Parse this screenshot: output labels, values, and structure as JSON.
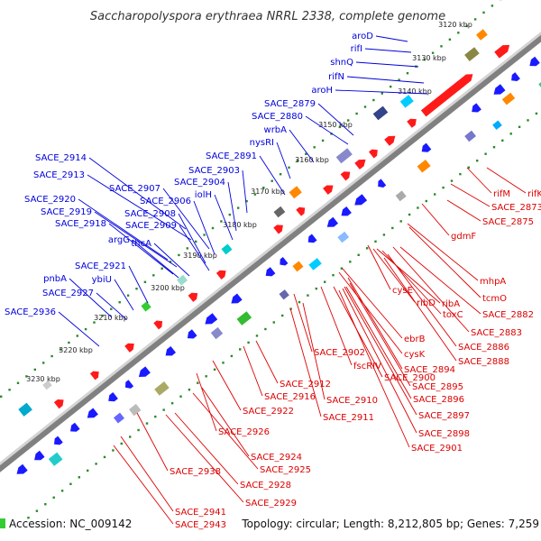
{
  "title": "Saccharopolyspora erythraea NRRL 2338, complete genome",
  "footer": {
    "accession": "Accession: NC_009142",
    "summary": "Topology: circular; Length: 8,212,805 bp; Genes: 7,259"
  },
  "colors": {
    "forward_label": "#0000dd",
    "reverse_label": "#dd0000",
    "forward_gene": "#1a1aff",
    "reverse_gene": "#ff1a1a",
    "backbone": "#808080",
    "dots": "#2a8a2a"
  },
  "ticks": [
    "3120 kbp",
    "3130 kbp",
    "3140 kbp",
    "3150 kbp",
    "3160 kbp",
    "3170 kbp",
    "3180 kbp",
    "3190 kbp",
    "3200 kbp",
    "3210 kbp",
    "3220 kbp",
    "3230 kbp"
  ],
  "forward_genes": [
    "aroD",
    "rifI",
    "shnQ",
    "rifN",
    "aroH",
    "SACE_2879",
    "SACE_2880",
    "wrbA",
    "nysRI",
    "SACE_2891",
    "SACE_2903",
    "SACE_2904",
    "iolH",
    "SACE_2914",
    "SACE_2913",
    "SACE_2907",
    "SACE_2906",
    "SACE_2920",
    "SACE_2919",
    "SACE_2908",
    "SACE_2918",
    "SACE_2909",
    "argG",
    "thcA",
    "SACE_2921",
    "pnbA",
    "ybiU",
    "SACE_2927",
    "SACE_2936"
  ],
  "reverse_genes": [
    "rifM",
    "rifK",
    "SACE_2873",
    "SACE_2875",
    "gdmF",
    "mhpA",
    "tcmO",
    "cysE",
    "ribD",
    "ribA",
    "toxC",
    "SACE_2882",
    "SACE_2883",
    "SACE_2886",
    "SACE_2888",
    "ebrB",
    "cysK",
    "SACE_2902",
    "fscRIV",
    "SACE_2900",
    "SACE_2894",
    "SACE_2895",
    "SACE_2896",
    "SACE_2897",
    "SACE_2898",
    "SACE_2901",
    "SACE_2912",
    "SACE_2916",
    "SACE_2910",
    "SACE_2911",
    "SACE_2922",
    "SACE_2926",
    "SACE_2924",
    "SACE_2925",
    "SACE_2938",
    "SACE_2928",
    "SACE_2929",
    "SACE_2941",
    "SACE_2943"
  ]
}
